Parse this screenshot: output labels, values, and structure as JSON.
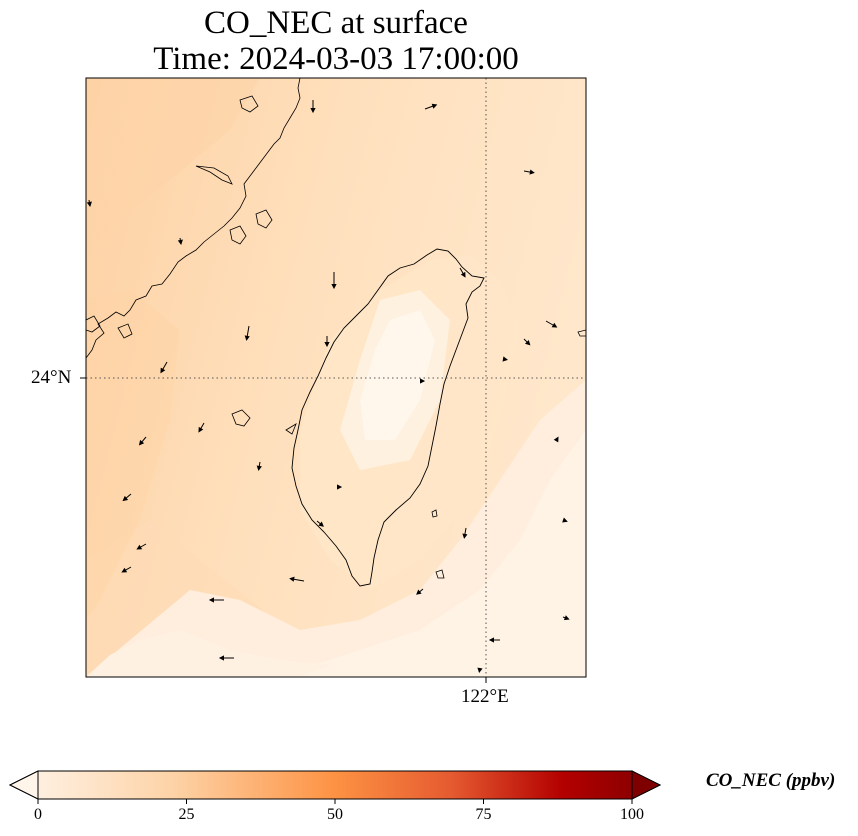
{
  "title": {
    "line1": "CO_NEC at surface",
    "line2": "Time: 2024-03-03 17:00:00"
  },
  "map": {
    "variable": "CO_NEC",
    "level": "surface",
    "time": "2024-03-03 17:00:00",
    "lon_range": [
      118.7,
      123.0
    ],
    "lat_range": [
      21.4,
      26.6
    ],
    "gridlines": {
      "style": "dotted",
      "lon": [
        {
          "value": 122,
          "label": "122°E"
        }
      ],
      "lat": [
        {
          "value": 24,
          "label": "24°N"
        }
      ]
    },
    "features": [
      "coastline-taiwan",
      "coastline-china",
      "wind-vectors",
      "co-field"
    ]
  },
  "colorbar": {
    "label": "CO_NEC (ppbv)",
    "ticks": [
      "0",
      "25",
      "50",
      "75",
      "100"
    ],
    "min": 0,
    "max": 100,
    "extend": "both",
    "colormap": [
      "#fff5eb",
      "#fdd3a7",
      "#fd9243",
      "#e55a30",
      "#b30000",
      "#7f0000"
    ]
  }
}
